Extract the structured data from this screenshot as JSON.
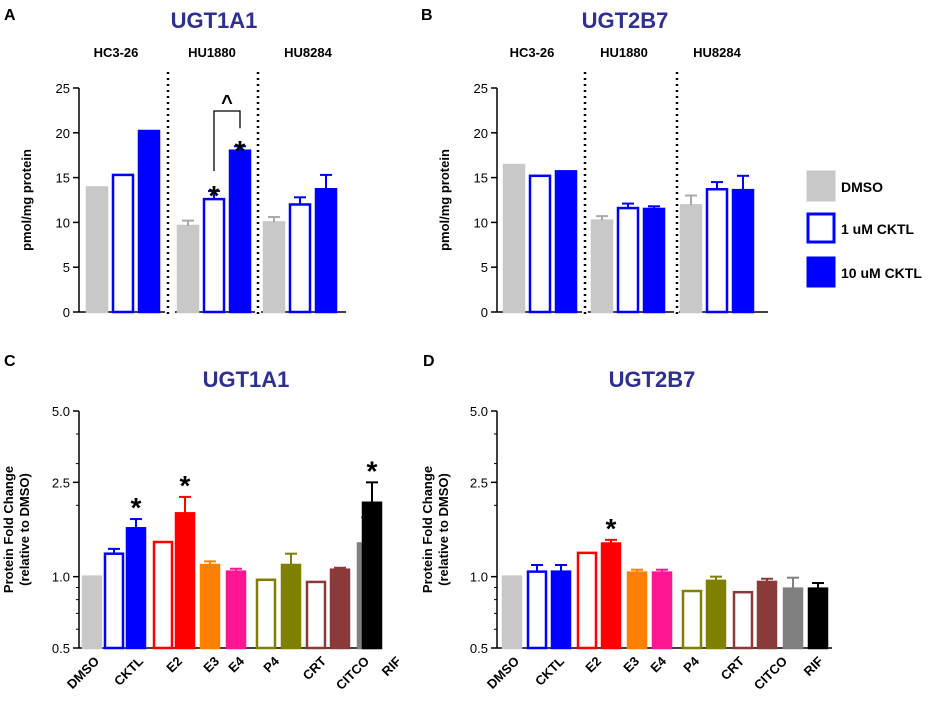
{
  "colors": {
    "title": "#2E3192",
    "dmso": "#C8C8C8",
    "cktl": "#0000FF",
    "e2": "#FF0000",
    "e3": "#FF8000",
    "e4": "#FF1493",
    "p4": "#808000",
    "crt": "#8B3A3A",
    "citco": "#808080",
    "rif": "#000000"
  },
  "legend": {
    "items": [
      {
        "label": "DMSO",
        "color": "#C8C8C8",
        "style": "filled"
      },
      {
        "label": "1 uM CKTL",
        "color": "#0000FF",
        "style": "open"
      },
      {
        "label": "10 uM CKTL",
        "color": "#0000FF",
        "style": "filled"
      }
    ]
  },
  "chart_data": [
    {
      "panel": "A",
      "type": "bar",
      "title": "UGT1A1",
      "ylabel": "pmol/mg protein",
      "ylim": [
        0,
        25
      ],
      "yticks": [
        0,
        5,
        10,
        15,
        20,
        25
      ],
      "groups": [
        "HC3-26",
        "HU1880",
        "HU8284"
      ],
      "series": [
        {
          "name": "DMSO",
          "values": [
            13.9,
            9.6,
            10.0
          ],
          "errors": [
            0,
            0.6,
            0.6
          ]
        },
        {
          "name": "1 uM CKTL",
          "values": [
            15.3,
            12.6,
            12.0
          ],
          "errors": [
            0,
            0.9,
            0.8
          ]
        },
        {
          "name": "10 uM CKTL",
          "values": [
            20.2,
            18.0,
            13.7
          ],
          "errors": [
            0,
            0.5,
            1.6
          ]
        }
      ],
      "annotations": [
        {
          "text": "*",
          "group": "HU1880",
          "series": "1 uM CKTL"
        },
        {
          "text": "*",
          "group": "HU1880",
          "series": "10 uM CKTL"
        },
        {
          "text": "^",
          "group": "HU1880",
          "series": "1 uM CKTL vs 10 uM CKTL"
        }
      ]
    },
    {
      "panel": "B",
      "type": "bar",
      "title": "UGT2B7",
      "ylabel": "pmol/mg protein",
      "ylim": [
        0,
        25
      ],
      "yticks": [
        0,
        5,
        10,
        15,
        20,
        25
      ],
      "groups": [
        "HC3-26",
        "HU1880",
        "HU8284"
      ],
      "series": [
        {
          "name": "DMSO",
          "values": [
            16.4,
            10.2,
            11.9
          ],
          "errors": [
            0,
            0.5,
            1.1
          ]
        },
        {
          "name": "1 uM CKTL",
          "values": [
            15.2,
            11.6,
            13.7
          ],
          "errors": [
            0,
            0.5,
            0.8
          ]
        },
        {
          "name": "10 uM CKTL",
          "values": [
            15.7,
            11.5,
            13.6
          ],
          "errors": [
            0,
            0.3,
            1.6
          ]
        }
      ],
      "annotations": []
    },
    {
      "panel": "C",
      "type": "bar",
      "title": "UGT1A1",
      "ylabel": "Protein Fold Change",
      "ylabel2": "(relative to DMSO)",
      "yscale": "log",
      "ylim": [
        0.5,
        5.0
      ],
      "yticks": [
        0.5,
        1.0,
        2.5,
        5.0
      ],
      "ytick_labels": [
        "0.5",
        "1.0",
        "2.5",
        "5.0"
      ],
      "categories": [
        "DMSO",
        "CKTL",
        "E2",
        "E3",
        "E4",
        "P4",
        "CRT",
        "CITCO",
        "RIF"
      ],
      "bars": [
        {
          "category": "DMSO",
          "kind": "dmso",
          "value": 1.0,
          "error": 0
        },
        {
          "category": "CKTL",
          "kind": "open",
          "value": 1.25,
          "error": 0.06
        },
        {
          "category": "CKTL",
          "kind": "filled",
          "value": 1.6,
          "error": 0.15,
          "star": "*"
        },
        {
          "category": "E2",
          "kind": "open",
          "value": 1.4,
          "error": 0
        },
        {
          "category": "E2",
          "kind": "filled",
          "value": 1.85,
          "error": 0.32,
          "star": "*"
        },
        {
          "category": "E3",
          "kind": "filled",
          "value": 1.12,
          "error": 0.04
        },
        {
          "category": "E4",
          "kind": "filled",
          "value": 1.05,
          "error": 0.03
        },
        {
          "category": "P4",
          "kind": "open",
          "value": 0.97,
          "error": 0
        },
        {
          "category": "P4",
          "kind": "filled",
          "value": 1.12,
          "error": 0.13
        },
        {
          "category": "CRT",
          "kind": "open",
          "value": 0.95,
          "error": 0
        },
        {
          "category": "CRT",
          "kind": "filled",
          "value": 1.07,
          "error": 0.02
        },
        {
          "category": "CITCO",
          "kind": "filled",
          "value": 1.38,
          "error": 0.4
        },
        {
          "category": "RIF",
          "kind": "filled",
          "value": 2.05,
          "error": 0.45,
          "star": "*"
        }
      ]
    },
    {
      "panel": "D",
      "type": "bar",
      "title": "UGT2B7",
      "ylabel": "Protein Fold Change",
      "ylabel2": "(relative to DMSO)",
      "yscale": "log",
      "ylim": [
        0.5,
        5.0
      ],
      "yticks": [
        0.5,
        1.0,
        2.5,
        5.0
      ],
      "ytick_labels": [
        "0.5",
        "1.0",
        "2.5",
        "5.0"
      ],
      "categories": [
        "DMSO",
        "CKTL",
        "E2",
        "E3",
        "E4",
        "P4",
        "CRT",
        "CITCO",
        "RIF"
      ],
      "bars": [
        {
          "category": "DMSO",
          "kind": "dmso",
          "value": 1.0,
          "error": 0
        },
        {
          "category": "CKTL",
          "kind": "open",
          "value": 1.05,
          "error": 0.07
        },
        {
          "category": "CKTL",
          "kind": "filled",
          "value": 1.05,
          "error": 0.07
        },
        {
          "category": "E2",
          "kind": "open",
          "value": 1.26,
          "error": 0
        },
        {
          "category": "E2",
          "kind": "filled",
          "value": 1.38,
          "error": 0.05,
          "star": "*"
        },
        {
          "category": "E3",
          "kind": "filled",
          "value": 1.04,
          "error": 0.03
        },
        {
          "category": "E4",
          "kind": "filled",
          "value": 1.04,
          "error": 0.03
        },
        {
          "category": "P4",
          "kind": "open",
          "value": 0.87,
          "error": 0
        },
        {
          "category": "P4",
          "kind": "filled",
          "value": 0.96,
          "error": 0.04
        },
        {
          "category": "CRT",
          "kind": "open",
          "value": 0.86,
          "error": 0
        },
        {
          "category": "CRT",
          "kind": "filled",
          "value": 0.95,
          "error": 0.03
        },
        {
          "category": "CITCO",
          "kind": "filled",
          "value": 0.89,
          "error": 0.1
        },
        {
          "category": "RIF",
          "kind": "filled",
          "value": 0.89,
          "error": 0.05
        }
      ]
    }
  ]
}
